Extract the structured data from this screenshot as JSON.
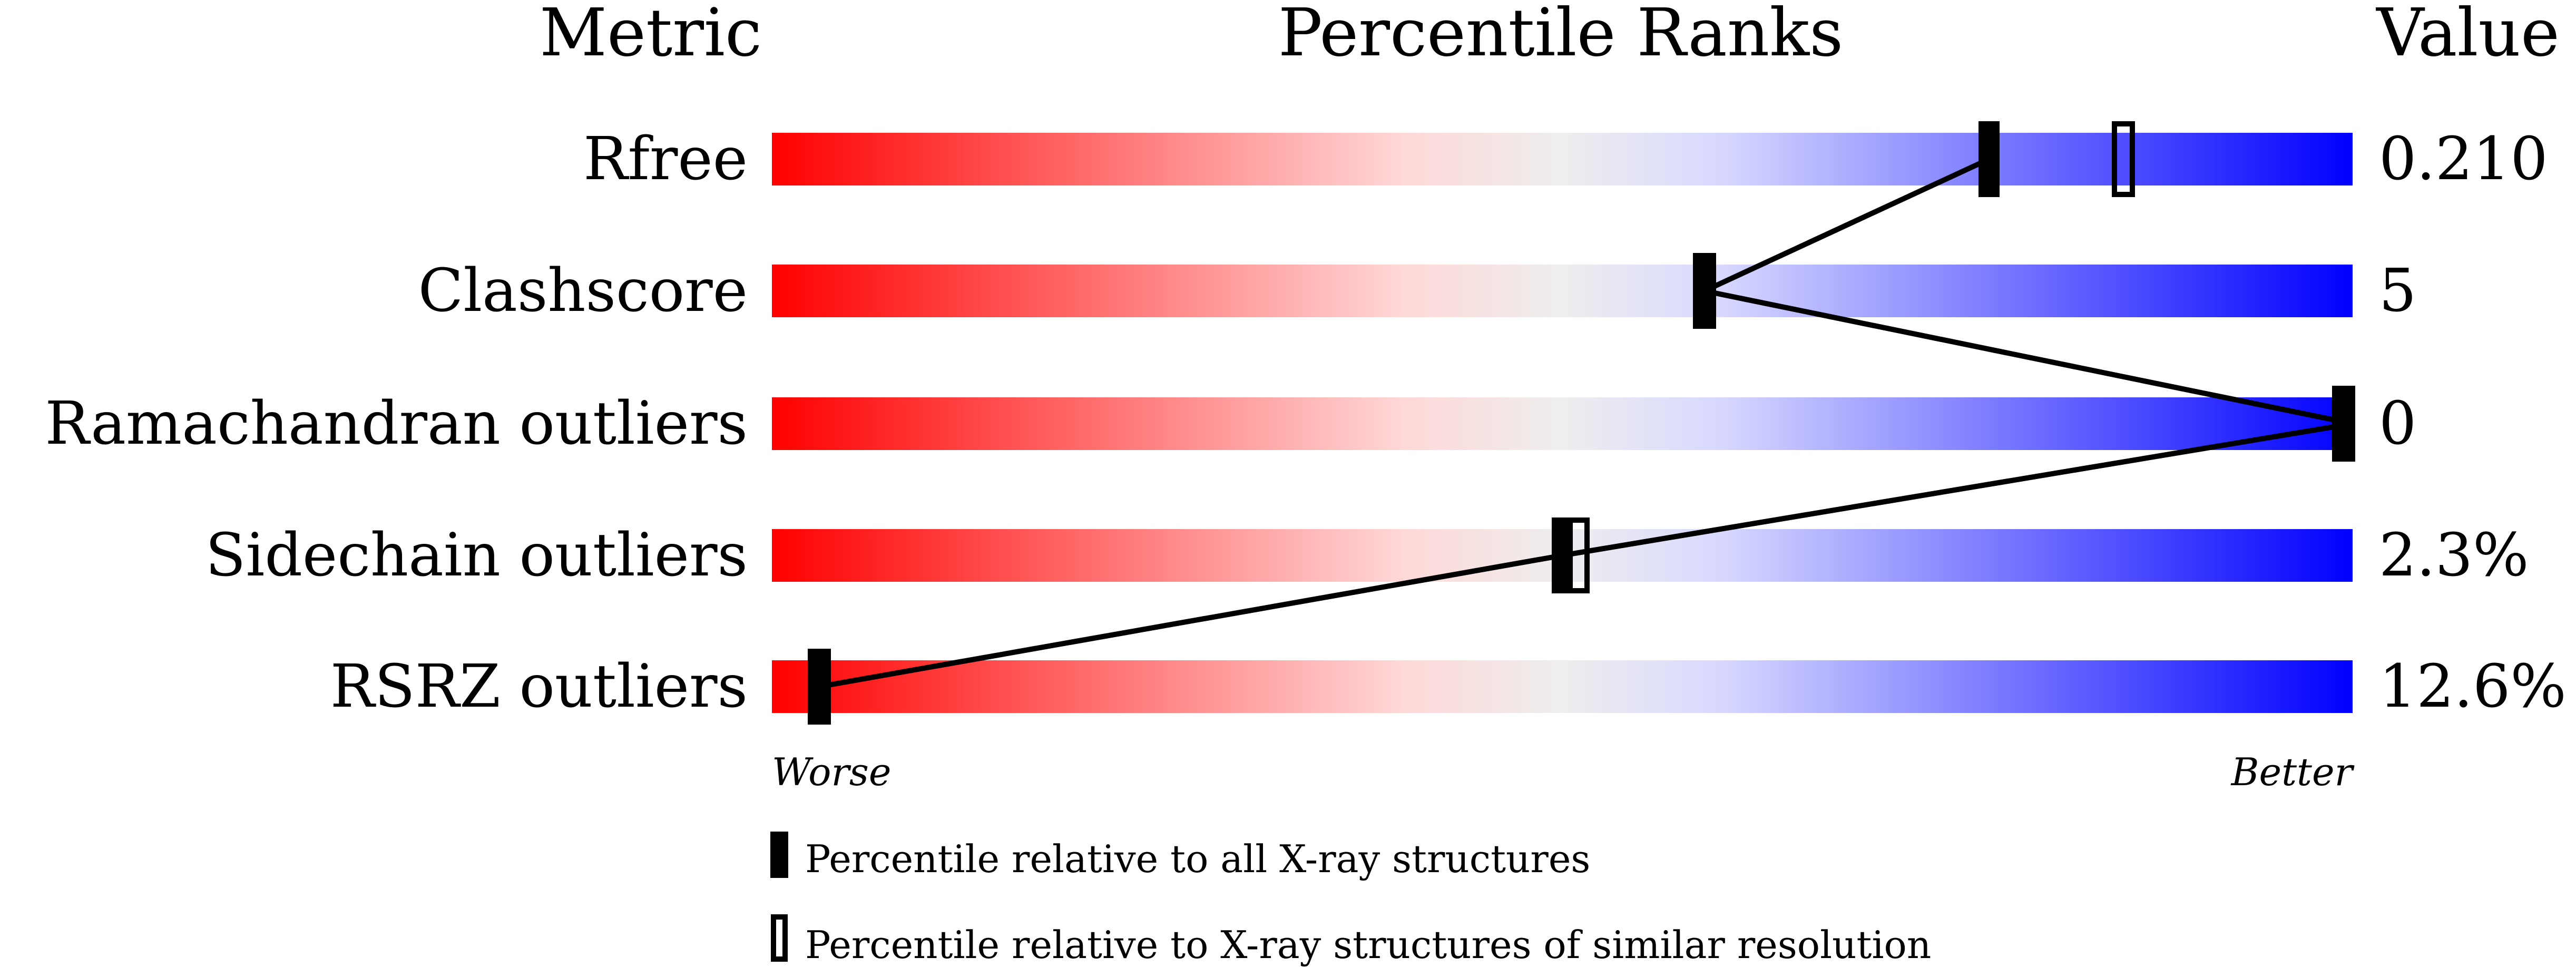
{
  "chart_data": {
    "type": "percentile-slider",
    "headers": {
      "metric": "Metric",
      "ranks": "Percentile Ranks",
      "value": "Value"
    },
    "axis": {
      "worse": "Worse",
      "better": "Better",
      "range": [
        0,
        100
      ]
    },
    "colors": {
      "worse": "#ff0000",
      "mid": "#eeeeee",
      "better": "#0000ff"
    },
    "metrics": [
      {
        "name": "Rfree",
        "value": "0.210",
        "percentile_all": 77,
        "percentile_similar": 85.5
      },
      {
        "name": "Clashscore",
        "value": "5",
        "percentile_all": 59,
        "percentile_similar": 59
      },
      {
        "name": "Ramachandran outliers",
        "value": "0",
        "percentile_all": 100,
        "percentile_similar": 100
      },
      {
        "name": "Sidechain outliers",
        "value": "2.3%",
        "percentile_all": 50,
        "percentile_similar": 51
      },
      {
        "name": "RSRZ outliers",
        "value": "12.6%",
        "percentile_all": 3,
        "percentile_similar": 3
      }
    ],
    "legend": {
      "all": "Percentile relative to all X-ray structures",
      "similar": "Percentile relative to X-ray structures of similar resolution"
    }
  }
}
